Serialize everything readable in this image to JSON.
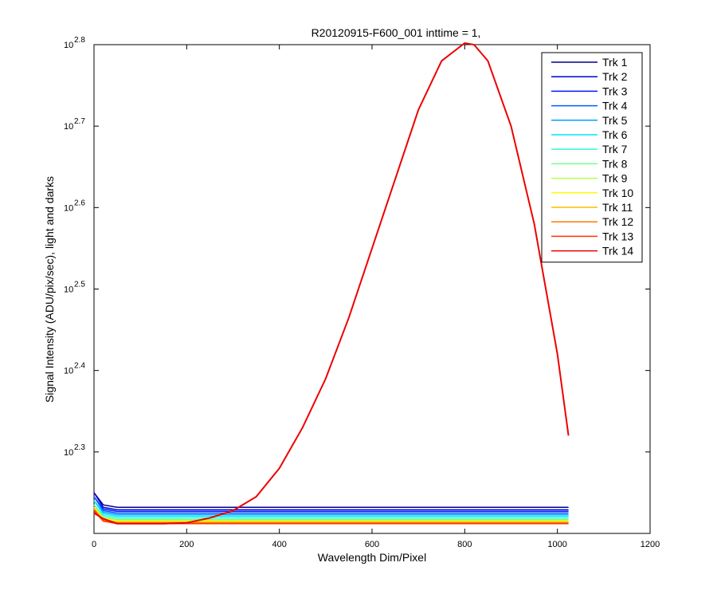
{
  "chart_data": {
    "type": "line",
    "title": "R20120915-F600_001 inttime = 1,",
    "xlabel": "Wavelength Dim/Pixel",
    "ylabel": "Signal Intensity (ADU/pix/sec), light and darks",
    "y_scale": "log",
    "xlim": [
      0,
      1200
    ],
    "ylim_log10": [
      2.2,
      2.8
    ],
    "x_ticks": [
      0,
      200,
      400,
      600,
      800,
      1000,
      1200
    ],
    "x_tick_labels": [
      "0",
      "200",
      "400",
      "600",
      "800",
      "1000",
      "1200"
    ],
    "y_ticks_log10": [
      2.3,
      2.4,
      2.5,
      2.6,
      2.7,
      2.8
    ],
    "y_tick_base": "10",
    "y_tick_exponents": [
      "2.3",
      "2.4",
      "2.5",
      "2.6",
      "2.7",
      "2.8"
    ],
    "grid": false,
    "legend_position": "top-right",
    "x": [
      0,
      20,
      50,
      100,
      150,
      200,
      250,
      300,
      350,
      400,
      450,
      500,
      550,
      600,
      650,
      700,
      750,
      800,
      820,
      850,
      900,
      950,
      1000,
      1024
    ],
    "series": [
      {
        "name": "Trk 1",
        "color": "#00008f",
        "values": [
          2.25,
          2.235,
          2.232,
          2.232,
          2.232,
          2.232,
          2.232,
          2.232,
          2.232,
          2.232,
          2.232,
          2.232,
          2.232,
          2.232,
          2.232,
          2.232,
          2.232,
          2.232,
          2.232,
          2.232,
          2.232,
          2.232,
          2.232,
          2.232
        ]
      },
      {
        "name": "Trk 2",
        "color": "#0000d2",
        "values": [
          2.25,
          2.232,
          2.229,
          2.229,
          2.229,
          2.229,
          2.229,
          2.229,
          2.229,
          2.229,
          2.229,
          2.229,
          2.229,
          2.229,
          2.229,
          2.229,
          2.229,
          2.229,
          2.229,
          2.229,
          2.229,
          2.229,
          2.229,
          2.229
        ]
      },
      {
        "name": "Trk 3",
        "color": "#0018ff",
        "values": [
          2.245,
          2.23,
          2.227,
          2.227,
          2.227,
          2.227,
          2.227,
          2.227,
          2.227,
          2.227,
          2.227,
          2.227,
          2.227,
          2.227,
          2.227,
          2.227,
          2.227,
          2.227,
          2.227,
          2.227,
          2.227,
          2.227,
          2.227,
          2.227
        ]
      },
      {
        "name": "Trk 4",
        "color": "#005cff",
        "values": [
          2.245,
          2.228,
          2.225,
          2.225,
          2.225,
          2.225,
          2.225,
          2.225,
          2.225,
          2.225,
          2.225,
          2.225,
          2.225,
          2.225,
          2.225,
          2.225,
          2.225,
          2.225,
          2.225,
          2.225,
          2.225,
          2.225,
          2.225,
          2.225
        ]
      },
      {
        "name": "Trk 5",
        "color": "#00a0ff",
        "values": [
          2.24,
          2.226,
          2.223,
          2.223,
          2.223,
          2.223,
          2.223,
          2.223,
          2.223,
          2.223,
          2.223,
          2.223,
          2.223,
          2.223,
          2.223,
          2.223,
          2.223,
          2.223,
          2.223,
          2.223,
          2.223,
          2.223,
          2.223,
          2.223
        ]
      },
      {
        "name": "Trk 6",
        "color": "#00e4ff",
        "values": [
          2.24,
          2.224,
          2.221,
          2.221,
          2.221,
          2.221,
          2.221,
          2.221,
          2.221,
          2.221,
          2.221,
          2.221,
          2.221,
          2.221,
          2.221,
          2.221,
          2.221,
          2.221,
          2.221,
          2.221,
          2.221,
          2.221,
          2.221,
          2.221
        ]
      },
      {
        "name": "Trk 7",
        "color": "#2cffd2",
        "values": [
          2.235,
          2.222,
          2.219,
          2.219,
          2.219,
          2.219,
          2.219,
          2.219,
          2.219,
          2.219,
          2.219,
          2.219,
          2.219,
          2.219,
          2.219,
          2.219,
          2.219,
          2.219,
          2.219,
          2.219,
          2.219,
          2.219,
          2.219,
          2.219
        ]
      },
      {
        "name": "Trk 8",
        "color": "#70ff8f",
        "values": [
          2.235,
          2.22,
          2.217,
          2.217,
          2.217,
          2.217,
          2.217,
          2.217,
          2.217,
          2.217,
          2.217,
          2.217,
          2.217,
          2.217,
          2.217,
          2.217,
          2.217,
          2.217,
          2.217,
          2.217,
          2.217,
          2.217,
          2.217,
          2.217
        ]
      },
      {
        "name": "Trk 9",
        "color": "#b4ff4b",
        "values": [
          2.232,
          2.219,
          2.216,
          2.216,
          2.216,
          2.216,
          2.216,
          2.216,
          2.216,
          2.216,
          2.216,
          2.216,
          2.216,
          2.216,
          2.216,
          2.216,
          2.216,
          2.216,
          2.216,
          2.216,
          2.216,
          2.216,
          2.216,
          2.216
        ]
      },
      {
        "name": "Trk 10",
        "color": "#f8ff07",
        "values": [
          2.232,
          2.218,
          2.215,
          2.215,
          2.215,
          2.215,
          2.215,
          2.215,
          2.215,
          2.215,
          2.215,
          2.215,
          2.215,
          2.215,
          2.215,
          2.215,
          2.215,
          2.215,
          2.215,
          2.215,
          2.215,
          2.215,
          2.215,
          2.215
        ]
      },
      {
        "name": "Trk 11",
        "color": "#ffbc00",
        "values": [
          2.23,
          2.217,
          2.214,
          2.214,
          2.214,
          2.214,
          2.214,
          2.214,
          2.214,
          2.214,
          2.214,
          2.214,
          2.214,
          2.214,
          2.214,
          2.214,
          2.214,
          2.214,
          2.214,
          2.214,
          2.214,
          2.214,
          2.214,
          2.214
        ]
      },
      {
        "name": "Trk 12",
        "color": "#ff7800",
        "values": [
          2.23,
          2.216,
          2.213,
          2.213,
          2.213,
          2.213,
          2.213,
          2.213,
          2.213,
          2.213,
          2.213,
          2.213,
          2.213,
          2.213,
          2.213,
          2.213,
          2.213,
          2.213,
          2.213,
          2.213,
          2.213,
          2.213,
          2.213,
          2.213
        ]
      },
      {
        "name": "Trk 13",
        "color": "#ff3400",
        "values": [
          2.228,
          2.215,
          2.212,
          2.212,
          2.212,
          2.212,
          2.212,
          2.212,
          2.212,
          2.212,
          2.212,
          2.212,
          2.212,
          2.212,
          2.212,
          2.212,
          2.212,
          2.212,
          2.212,
          2.212,
          2.212,
          2.212,
          2.212,
          2.212
        ]
      },
      {
        "name": "Trk 14",
        "color": "#ee0000",
        "values": [
          2.225,
          2.218,
          2.212,
          2.212,
          2.212,
          2.213,
          2.219,
          2.228,
          2.245,
          2.28,
          2.33,
          2.39,
          2.465,
          2.55,
          2.635,
          2.72,
          2.78,
          2.802,
          2.8,
          2.78,
          2.7,
          2.58,
          2.42,
          2.32
        ]
      }
    ]
  }
}
